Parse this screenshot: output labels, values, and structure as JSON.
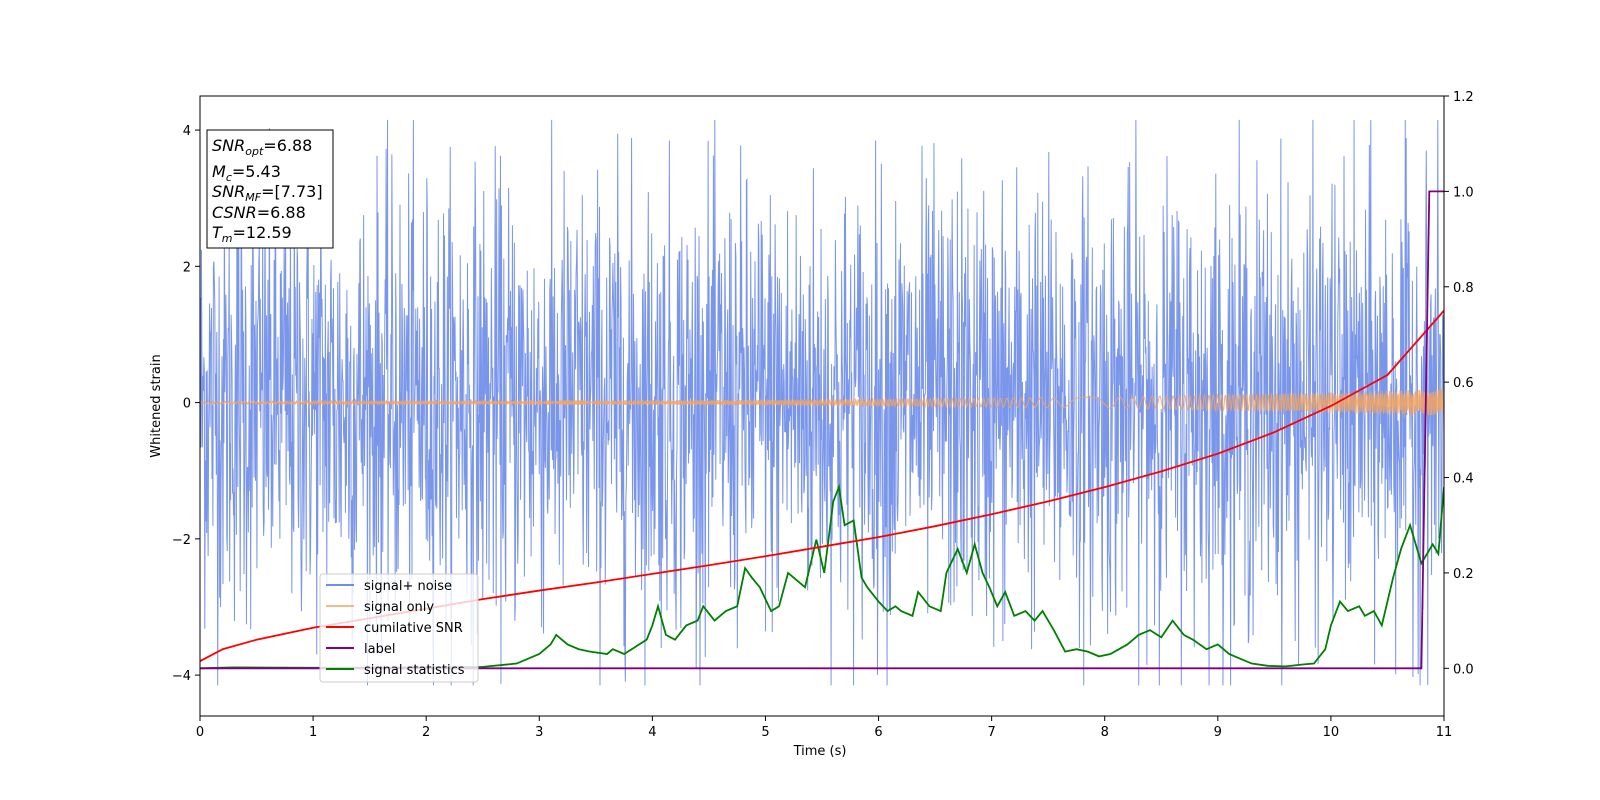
{
  "chart_data": {
    "type": "line",
    "xlabel": "Time (s)",
    "ylabel": "Whitened strain",
    "xlim": [
      0,
      11
    ],
    "ylim_left": [
      -4.6,
      4.5
    ],
    "ylim_right": [
      -0.1,
      1.2
    ],
    "x_ticks": [
      0,
      1,
      2,
      3,
      4,
      5,
      6,
      7,
      8,
      9,
      10,
      11
    ],
    "y_left_ticks": [
      -4,
      -2,
      0,
      2,
      4
    ],
    "y_right_ticks": [
      "0.0",
      "0.2",
      "0.4",
      "0.6",
      "0.8",
      "1.0",
      "1.2"
    ],
    "grid": false,
    "legend_position": "lower-left",
    "annotation": {
      "lines": [
        {
          "sym": "SNR",
          "sub": "opt",
          "val": "=6.88"
        },
        {
          "sym": "M",
          "sub": "c",
          "val": "=5.43"
        },
        {
          "sym": "SNR",
          "sub": "MF",
          "val": "=[7.73]"
        },
        {
          "sym": "CSNR",
          "sub": "",
          "val": "=6.88"
        },
        {
          "sym": "T",
          "sub": "m",
          "val": "=12.59"
        }
      ]
    },
    "series": [
      {
        "name": "signal+ noise",
        "axis": "left",
        "color": "#4169e1",
        "style": "dense random noise, roughly ±2.5 core, peaks up to ±4",
        "amplitude_envelope": [
          [
            0,
            2.6
          ],
          [
            11,
            2.6
          ]
        ],
        "peak_extremes": [
          3.97,
          -4.15
        ]
      },
      {
        "name": "signal only",
        "axis": "left",
        "color": "#f4a460",
        "style": "chirp oscillation about 0 with growing amplitude",
        "amplitude_envelope": [
          [
            0,
            0.02
          ],
          [
            5,
            0.04
          ],
          [
            8,
            0.08
          ],
          [
            10,
            0.15
          ],
          [
            11,
            0.2
          ]
        ]
      },
      {
        "name": "cumilative SNR",
        "axis": "right",
        "color": "#ff0000",
        "x": [
          0,
          0.2,
          0.5,
          1,
          1.5,
          2,
          2.5,
          3,
          3.5,
          4,
          4.5,
          5,
          5.5,
          6,
          6.5,
          7,
          7.5,
          8,
          8.5,
          9,
          9.5,
          10,
          10.5,
          11
        ],
        "y": [
          0.015,
          0.04,
          0.06,
          0.085,
          0.105,
          0.125,
          0.145,
          0.163,
          0.18,
          0.198,
          0.216,
          0.235,
          0.255,
          0.275,
          0.298,
          0.323,
          0.35,
          0.38,
          0.413,
          0.45,
          0.495,
          0.55,
          0.615,
          0.75
        ]
      },
      {
        "name": "label",
        "axis": "right",
        "color": "#800080",
        "x": [
          0,
          10.8,
          10.87,
          11
        ],
        "y": [
          0,
          0,
          1,
          1
        ]
      },
      {
        "name": "signal statistics",
        "axis": "right",
        "color": "#008000",
        "x": [
          0,
          0.3,
          1,
          2,
          2.5,
          2.8,
          3.0,
          3.1,
          3.15,
          3.25,
          3.35,
          3.45,
          3.6,
          3.65,
          3.75,
          3.85,
          3.95,
          4.0,
          4.05,
          4.12,
          4.2,
          4.3,
          4.4,
          4.45,
          4.55,
          4.65,
          4.75,
          4.82,
          4.88,
          4.95,
          5.05,
          5.12,
          5.2,
          5.25,
          5.35,
          5.45,
          5.52,
          5.6,
          5.65,
          5.7,
          5.78,
          5.85,
          5.9,
          6.0,
          6.08,
          6.15,
          6.2,
          6.3,
          6.35,
          6.45,
          6.55,
          6.6,
          6.7,
          6.78,
          6.85,
          6.92,
          6.98,
          7.05,
          7.12,
          7.2,
          7.3,
          7.38,
          7.45,
          7.55,
          7.65,
          7.75,
          7.85,
          7.95,
          8.05,
          8.2,
          8.3,
          8.4,
          8.5,
          8.6,
          8.7,
          8.78,
          8.9,
          9.0,
          9.1,
          9.2,
          9.3,
          9.45,
          9.6,
          9.75,
          9.85,
          9.95,
          10.0,
          10.08,
          10.15,
          10.25,
          10.3,
          10.38,
          10.45,
          10.55,
          10.62,
          10.7,
          10.8,
          10.9,
          10.95,
          11.0
        ],
        "y": [
          0,
          0.002,
          0.001,
          0.002,
          0.003,
          0.01,
          0.03,
          0.05,
          0.07,
          0.05,
          0.04,
          0.035,
          0.03,
          0.04,
          0.03,
          0.045,
          0.06,
          0.09,
          0.13,
          0.07,
          0.06,
          0.09,
          0.1,
          0.13,
          0.1,
          0.12,
          0.13,
          0.21,
          0.19,
          0.17,
          0.12,
          0.13,
          0.2,
          0.19,
          0.17,
          0.27,
          0.2,
          0.35,
          0.38,
          0.3,
          0.31,
          0.19,
          0.17,
          0.14,
          0.12,
          0.13,
          0.12,
          0.11,
          0.16,
          0.13,
          0.12,
          0.2,
          0.25,
          0.2,
          0.26,
          0.2,
          0.17,
          0.13,
          0.16,
          0.11,
          0.12,
          0.1,
          0.12,
          0.08,
          0.035,
          0.04,
          0.035,
          0.025,
          0.03,
          0.05,
          0.07,
          0.08,
          0.065,
          0.1,
          0.07,
          0.06,
          0.04,
          0.05,
          0.03,
          0.02,
          0.01,
          0.005,
          0.004,
          0.008,
          0.01,
          0.04,
          0.09,
          0.14,
          0.12,
          0.13,
          0.11,
          0.12,
          0.09,
          0.19,
          0.25,
          0.3,
          0.22,
          0.26,
          0.24,
          0.38
        ]
      }
    ]
  }
}
